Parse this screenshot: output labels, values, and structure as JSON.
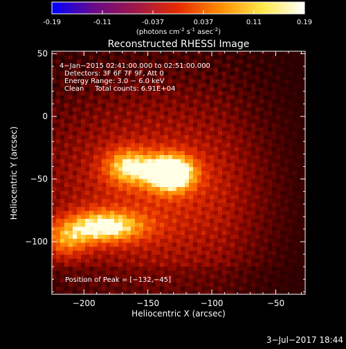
{
  "colorbar": {
    "ticks": [
      "-0.19",
      "-0.11",
      "-0.037",
      "0.037",
      "0.11",
      "0.19"
    ],
    "unit_label": "(photons cm",
    "unit_exp1": "-2",
    "unit_mid": " s",
    "unit_exp2": "-1",
    "unit_mid2": " asec",
    "unit_exp3": "-2",
    "unit_end": ")",
    "colors": [
      "#0000ff",
      "#6a0a8a",
      "#a01848",
      "#e52b00",
      "#ff8c00",
      "#ffe84a",
      "#ffffff"
    ]
  },
  "chart_data": {
    "type": "heatmap",
    "title": "Reconstructed RHESSI Image",
    "xlabel": "Heliocentric X (arcsec)",
    "ylabel": "Heliocentric Y (arcsec)",
    "xlim": [
      -225,
      -27
    ],
    "ylim": [
      -142,
      52
    ],
    "xticks": [
      -200,
      -150,
      -100,
      -50
    ],
    "yticks": [
      50,
      0,
      -50,
      -100
    ],
    "xtick_labels": [
      "−200",
      "−150",
      "−100",
      "−50"
    ],
    "ytick_labels": [
      "50",
      "0",
      "−50",
      "−100"
    ],
    "info": [
      "4−Jan−2015 02:41:00.000 to 02:51:00.000",
      "Detectors: 3F 6F 7F 9F, Att 0",
      "Energy Range: 3.0 − 6.0 keV",
      "Clean     Total counts: 6.91E+04"
    ],
    "peak_label": "Position of Peak = [−132,−45]",
    "peak": [
      -132,
      -45
    ],
    "sources": [
      {
        "x": -132,
        "y": -45,
        "amp": 0.19
      },
      {
        "x": -165,
        "y": -40,
        "amp": 0.11
      },
      {
        "x": -185,
        "y": -88,
        "amp": 0.14
      },
      {
        "x": -215,
        "y": -100,
        "amp": 0.08
      }
    ]
  },
  "footer_date": "3−Jul−2017 18:44"
}
